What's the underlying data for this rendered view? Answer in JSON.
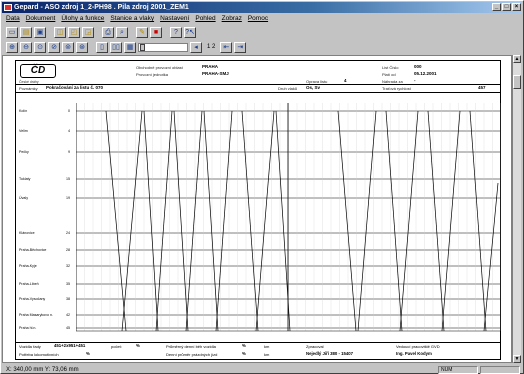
{
  "window": {
    "title": "Gepard - ASO zdroj 1_2-PH98 . Pila zdroj 2001_ZEM1",
    "minimize": "_",
    "maximize": "□",
    "close": "×"
  },
  "menu": [
    "Data",
    "Dokument",
    "Úlohy a funkce",
    "Stanice a vlaky",
    "Nastavení",
    "Pohled",
    "Zobraz",
    "Pomoc"
  ],
  "toolbar": {
    "page_indicator": "1 2",
    "icons": [
      "new-icon",
      "open-icon",
      "save-icon",
      "copy-icon",
      "paste-icon",
      "print-icon",
      "print-preview-icon",
      "edit-icon",
      "delete-icon",
      "help-icon",
      "context-help-icon"
    ],
    "zoom_icons": [
      "zoom-in-icon",
      "zoom-out-icon",
      "zoom-fit-icon",
      "zoom-width-icon",
      "zoom-page-icon",
      "zoom-select-icon",
      "page-layout-icon",
      "grid-icon"
    ]
  },
  "header": {
    "logo": "ČD",
    "logo_sub": "České dráhy",
    "label_oblast": "Obchodně provozní oblast",
    "value_oblast": "PRAHA",
    "label_provoz": "Provozní jednotka",
    "value_provoz": "PRAHA-SMJ",
    "label_list": "List Číslo",
    "value_list": "000",
    "label_platnost": "Platí od",
    "value_platnost": "05.12.2001",
    "label_nahrada": "Náhrada za",
    "value_nahrada": "-",
    "label_opravy": "Oprava listu",
    "value_opravy": "4",
    "label_poznamky": "Poznámky",
    "value_poznamky": "Pokračování za listu č. 070",
    "label_druh": "Druh vlaků",
    "value_druh": "Os, Sv",
    "label_rychlost": "Traťová rychlost",
    "value_rychlost": "457"
  },
  "stations": [
    {
      "name": "Kolín",
      "km": "0"
    },
    {
      "name": "Velim",
      "km": "4"
    },
    {
      "name": "Pečky",
      "km": "9"
    },
    {
      "name": "Tuklaty",
      "km": "15"
    },
    {
      "name": "Úvaly",
      "km": "19"
    },
    {
      "name": "Klánovice",
      "km": "24"
    },
    {
      "name": "Praha-Běchovice",
      "km": "28"
    },
    {
      "name": "Praha-Kyje",
      "km": "32"
    },
    {
      "name": "Praha-Libeň",
      "km": "35"
    },
    {
      "name": "Praha-Vysočany",
      "km": "38"
    },
    {
      "name": "Praha Masarykovo n.",
      "km": "42"
    },
    {
      "name": "Praha hl.n.",
      "km": "45"
    }
  ],
  "hours": [
    "1",
    "2"
  ],
  "footer": {
    "label_vozidla": "Vozidla řady",
    "value_vozidla": "451+2x951+451",
    "label_pocet": "počet:",
    "value_pocet": "%",
    "label_prumer": "Průměrný denní běh vozidla",
    "value_prumer": "%",
    "unit_km": "km",
    "label_zpracoval": "Zpracoval",
    "label_vedouci": "Vedoucí pracoviště GVD",
    "label_potreba": "Potřeba lokomotivních",
    "value_potreba": "%",
    "label_denni": "Denní průměr prázdných jízd",
    "value_denni": "%",
    "unit_km2": "km",
    "value_zpracoval": "Nejedlý Jiří   380 - 15407",
    "value_vedouci": "Ing. Pavel Kodym"
  },
  "status": {
    "coords": "X: 340,00 mm   Y: 73,06 mm",
    "num": "NUM"
  },
  "colors": {
    "titlebar": "#0a246a",
    "background": "#c3c3c3"
  }
}
